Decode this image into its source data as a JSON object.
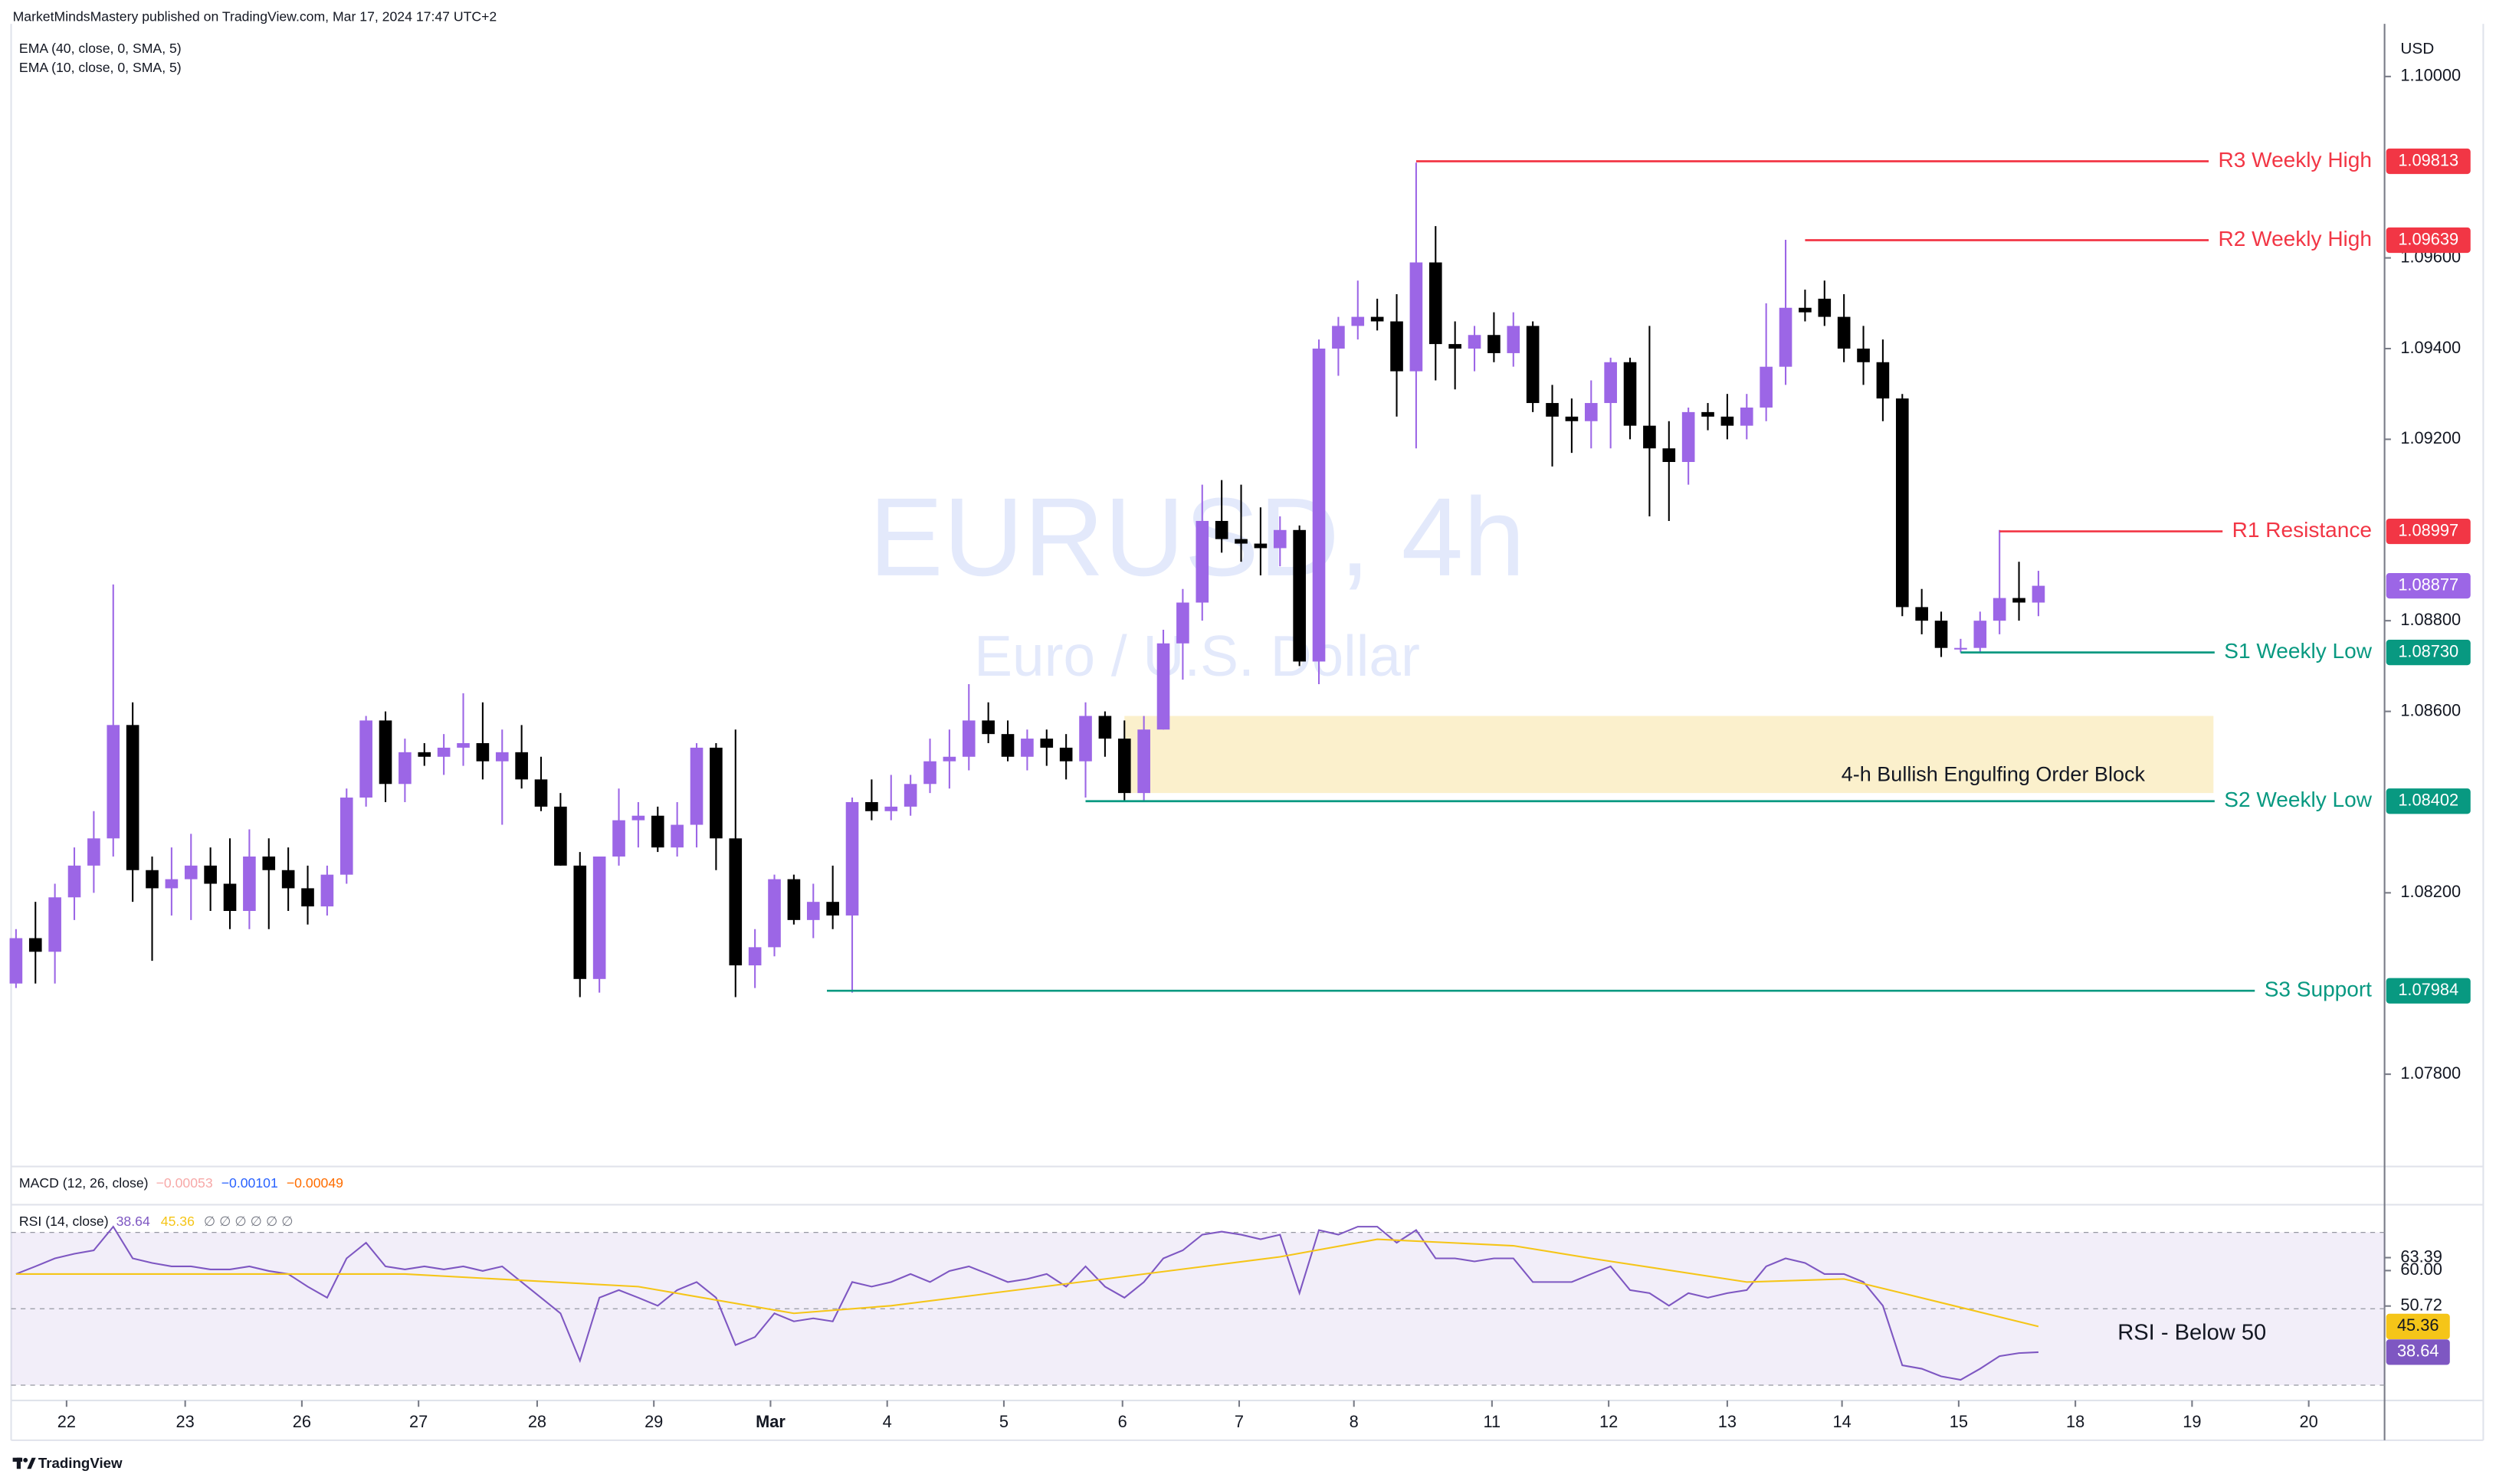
{
  "header": {
    "published": "MarketMindsMastery published on TradingView.com, Mar 17, 2024 17:47 UTC+2"
  },
  "chart_data": [
    {
      "type": "candlestick",
      "title": "EURUSD, 4h",
      "subtitle": "Euro / U.S. Dollar",
      "currency": "USD",
      "indicators": [
        "EMA (40, close, 0, SMA, 5)",
        "EMA (10, close, 0, SMA, 5)"
      ],
      "open": [
        1.08,
        1.081,
        1.0807,
        1.0819,
        1.0826,
        1.0832,
        1.0857,
        1.0825,
        1.0821,
        1.0823,
        1.0826,
        1.0822,
        1.0816,
        1.0828,
        1.0825,
        1.0821,
        1.0817,
        1.0824,
        1.0841,
        1.0858,
        1.0844,
        1.0851,
        1.085,
        1.0852,
        1.0853,
        1.0849,
        1.0851,
        1.0845,
        1.0839,
        1.0826,
        1.0801,
        1.0828,
        1.0836,
        1.0837,
        1.083,
        1.0835,
        1.0852,
        1.0832,
        1.0804,
        1.0808,
        1.0823,
        1.0814,
        1.0818,
        1.0815,
        1.084,
        1.0838,
        1.0839,
        1.0844,
        1.0849,
        1.085,
        1.0858,
        1.0855,
        1.085,
        1.0854,
        1.0852,
        1.0849,
        1.0859,
        1.0854,
        1.0842,
        1.0856,
        1.0875,
        1.0884,
        1.0902,
        1.0898,
        1.0897,
        1.0896,
        1.09,
        1.0871,
        1.094,
        1.0945,
        1.0947,
        1.0946,
        1.0935,
        1.0959,
        1.0941,
        1.094,
        1.0943,
        1.0939,
        1.0945,
        1.0928,
        1.0925,
        1.0924,
        1.0928,
        1.0937,
        1.0923,
        1.0918,
        1.0915,
        1.0926,
        1.0925,
        1.0923,
        1.0927,
        1.0936,
        1.0949,
        1.0951,
        1.0947,
        1.094,
        1.0937,
        1.0929,
        1.0883,
        1.088,
        1.0874,
        1.0874,
        1.088,
        1.0885,
        1.0884
      ],
      "high": [
        1.0812,
        1.0818,
        1.0822,
        1.083,
        1.0838,
        1.0888,
        1.0862,
        1.0828,
        1.083,
        1.0833,
        1.083,
        1.0832,
        1.0834,
        1.0832,
        1.083,
        1.0826,
        1.0826,
        1.0843,
        1.0859,
        1.086,
        1.0854,
        1.0853,
        1.0855,
        1.0864,
        1.0862,
        1.0856,
        1.0857,
        1.085,
        1.0842,
        1.0829,
        1.0828,
        1.0843,
        1.084,
        1.0839,
        1.084,
        1.0853,
        1.0853,
        1.0856,
        1.0812,
        1.0824,
        1.0824,
        1.0822,
        1.0826,
        1.0841,
        1.0845,
        1.0846,
        1.0846,
        1.0854,
        1.0856,
        1.0866,
        1.0862,
        1.0858,
        1.0856,
        1.0856,
        1.0855,
        1.0862,
        1.086,
        1.0858,
        1.0859,
        1.0878,
        1.0887,
        1.091,
        1.0911,
        1.091,
        1.0905,
        1.0903,
        1.0901,
        1.0942,
        1.0947,
        1.0955,
        1.0951,
        1.0952,
        1.0981,
        1.0967,
        1.0946,
        1.0945,
        1.0948,
        1.0948,
        1.0946,
        1.0932,
        1.0929,
        1.0933,
        1.0938,
        1.0938,
        1.0945,
        1.0924,
        1.0927,
        1.0928,
        1.093,
        1.093,
        1.095,
        1.0964,
        1.0953,
        1.0955,
        1.0952,
        1.0945,
        1.0942,
        1.093,
        1.0887,
        1.0882,
        1.0876,
        1.0882,
        1.09,
        1.0893,
        1.0891
      ],
      "low": [
        1.0799,
        1.08,
        1.08,
        1.0814,
        1.082,
        1.0828,
        1.0818,
        1.0805,
        1.0815,
        1.0814,
        1.0816,
        1.0812,
        1.0812,
        1.0812,
        1.0816,
        1.0813,
        1.0815,
        1.0822,
        1.0839,
        1.084,
        1.084,
        1.0848,
        1.0846,
        1.0848,
        1.0845,
        1.0835,
        1.0843,
        1.0838,
        1.0826,
        1.0797,
        1.0798,
        1.0826,
        1.083,
        1.0829,
        1.0828,
        1.083,
        1.0825,
        1.0797,
        1.0799,
        1.0806,
        1.0813,
        1.081,
        1.0812,
        1.0798,
        1.0836,
        1.0836,
        1.0837,
        1.0842,
        1.0843,
        1.0847,
        1.0853,
        1.0849,
        1.0847,
        1.0848,
        1.0845,
        1.0841,
        1.085,
        1.084,
        1.084,
        1.0856,
        1.0867,
        1.088,
        1.0895,
        1.0893,
        1.089,
        1.0892,
        1.087,
        1.0866,
        1.0934,
        1.0942,
        1.0944,
        1.0925,
        1.0918,
        1.0933,
        1.0931,
        1.0935,
        1.0937,
        1.0936,
        1.0926,
        1.0914,
        1.0917,
        1.0918,
        1.0918,
        1.092,
        1.0903,
        1.0902,
        1.091,
        1.0922,
        1.092,
        1.092,
        1.0924,
        1.0932,
        1.0946,
        1.0945,
        1.0937,
        1.0932,
        1.0924,
        1.0881,
        1.0877,
        1.0872,
        1.0873,
        1.0873,
        1.0877,
        1.088,
        1.0881
      ],
      "close": [
        1.081,
        1.0807,
        1.0819,
        1.0826,
        1.0832,
        1.0857,
        1.0825,
        1.0821,
        1.0823,
        1.0826,
        1.0822,
        1.0816,
        1.0828,
        1.0825,
        1.0821,
        1.0817,
        1.0824,
        1.0841,
        1.0858,
        1.0844,
        1.0851,
        1.085,
        1.0852,
        1.0853,
        1.0849,
        1.0851,
        1.0845,
        1.0839,
        1.0826,
        1.0801,
        1.0828,
        1.0836,
        1.0837,
        1.083,
        1.0835,
        1.0852,
        1.0832,
        1.0804,
        1.0808,
        1.0823,
        1.0814,
        1.0818,
        1.0815,
        1.084,
        1.0838,
        1.0839,
        1.0844,
        1.0849,
        1.085,
        1.0858,
        1.0855,
        1.085,
        1.0854,
        1.0852,
        1.0849,
        1.0859,
        1.0854,
        1.0842,
        1.0856,
        1.0875,
        1.0884,
        1.0902,
        1.0898,
        1.0897,
        1.0896,
        1.09,
        1.0871,
        1.094,
        1.0945,
        1.0947,
        1.0946,
        1.0935,
        1.0959,
        1.0941,
        1.094,
        1.0943,
        1.0939,
        1.0945,
        1.0928,
        1.0925,
        1.0924,
        1.0928,
        1.0937,
        1.0923,
        1.0918,
        1.0915,
        1.0926,
        1.0925,
        1.0923,
        1.0927,
        1.0936,
        1.0949,
        1.0948,
        1.0947,
        1.094,
        1.0937,
        1.0929,
        1.0883,
        1.088,
        1.0874,
        1.0874,
        1.088,
        1.0885,
        1.0884,
        1.08877
      ],
      "colors": {
        "up": "#9c66e6",
        "down": "#000000"
      },
      "xlim": [
        -0.25,
        121.8
      ],
      "xticks": [
        {
          "value": 2.6,
          "label": "22"
        },
        {
          "value": 8.7,
          "label": "23"
        },
        {
          "value": 14.7,
          "label": "26"
        },
        {
          "value": 20.7,
          "label": "27"
        },
        {
          "value": 26.8,
          "label": "28"
        },
        {
          "value": 32.8,
          "label": "29"
        },
        {
          "value": 38.8,
          "label": "Mar"
        },
        {
          "value": 44.8,
          "label": "4"
        },
        {
          "value": 50.8,
          "label": "5"
        },
        {
          "value": 56.9,
          "label": "6"
        },
        {
          "value": 62.9,
          "label": "7"
        },
        {
          "value": 68.8,
          "label": "8"
        },
        {
          "value": 75.9,
          "label": "11"
        },
        {
          "value": 81.9,
          "label": "12"
        },
        {
          "value": 88.0,
          "label": "13"
        },
        {
          "value": 93.9,
          "label": "14"
        },
        {
          "value": 99.9,
          "label": "15"
        },
        {
          "value": 105.9,
          "label": "18"
        },
        {
          "value": 111.9,
          "label": "19"
        },
        {
          "value": 117.9,
          "label": "20"
        }
      ],
      "ylim": [
        1.076,
        1.10116
      ],
      "yticks": [
        {
          "value": 1.1,
          "label": "1.10000"
        },
        {
          "value": 1.096,
          "label": "1.09600"
        },
        {
          "value": 1.094,
          "label": "1.09400"
        },
        {
          "value": 1.092,
          "label": "1.09200"
        },
        {
          "value": 1.088,
          "label": "1.08800"
        },
        {
          "value": 1.086,
          "label": "1.08600"
        },
        {
          "value": 1.082,
          "label": "1.08200"
        },
        {
          "value": 1.078,
          "label": "1.07800"
        }
      ],
      "levels": [
        {
          "label": "R3 Weekly High",
          "value": 1.09813,
          "x_start": 72,
          "color": "#f23645"
        },
        {
          "label": "R2 Weekly High",
          "value": 1.09639,
          "x_start": 92,
          "color": "#f23645"
        },
        {
          "label": "R1 Resistance",
          "value": 1.08997,
          "x_start": 102,
          "color": "#f23645"
        },
        {
          "label": "S1 Weekly Low",
          "value": 1.0873,
          "value_label": "1.08730",
          "x_start": 100,
          "color": "#089981"
        },
        {
          "label": "S2 Weekly Low",
          "value": 1.08402,
          "x_start": 55,
          "color": "#089981"
        },
        {
          "label": "S3 Support",
          "value": 1.07984,
          "x_start": 41.7,
          "color": "#089981"
        }
      ],
      "order_block": {
        "label": "4-h Bullish Engulfing Order Block",
        "low": 1.0842,
        "high": 1.0859,
        "x_start": 57,
        "x_end": 113,
        "color": "#fbf0cc"
      }
    },
    {
      "type": "line",
      "title": "RSI (14, close)",
      "ylim": [
        26,
        76
      ],
      "yticks": [
        63.39,
        {
          "value": 60,
          "label": "60.00"
        },
        50.72
      ],
      "band": [
        30,
        70
      ],
      "midline": 50,
      "band_color": "#7e57c2",
      "legend_extra": "∅ ∅ ∅ ∅ ∅ ∅",
      "annotation": "RSI - Below 50",
      "series": [
        {
          "color": "#7e57c2",
          "values": [
            59.1,
            61.1,
            63.2,
            64.4,
            65.3,
            71.5,
            63.2,
            62.0,
            61.1,
            61.1,
            60.3,
            60.3,
            61.1,
            59.9,
            59.1,
            55.8,
            52.9,
            63.2,
            67.3,
            61.1,
            60.3,
            61.1,
            60.3,
            61.1,
            59.9,
            61.1,
            57.0,
            52.9,
            48.8,
            36.4,
            52.9,
            54.9,
            52.9,
            50.8,
            54.9,
            57.0,
            52.9,
            40.5,
            42.6,
            48.8,
            46.7,
            47.5,
            46.7,
            57.0,
            55.8,
            57.0,
            59.1,
            57.0,
            59.9,
            61.1,
            59.1,
            57.0,
            57.8,
            59.1,
            55.8,
            61.1,
            55.8,
            52.9,
            57.0,
            63.2,
            65.3,
            69.4,
            70.2,
            69.4,
            68.2,
            69.4,
            54.1,
            70.6,
            69.4,
            71.5,
            71.5,
            67.3,
            70.6,
            63.2,
            63.2,
            62.4,
            63.2,
            63.2,
            57.0,
            57.0,
            57.0,
            59.1,
            61.1,
            54.9,
            54.1,
            50.8,
            54.1,
            52.9,
            54.1,
            54.9,
            61.1,
            63.2,
            62.0,
            59.1,
            59.1,
            57.0,
            50.8,
            35.2,
            34.3,
            32.3,
            31.4,
            34.3,
            37.6,
            38.4,
            38.64
          ]
        },
        {
          "color": "#f5c518",
          "x": [
            0,
            20,
            32,
            40,
            45,
            56,
            65,
            70,
            77,
            81,
            89,
            94,
            97,
            104
          ],
          "values": [
            59.1,
            59.1,
            55.8,
            48.8,
            50.8,
            57.8,
            63.6,
            68.2,
            66.5,
            63.2,
            57.0,
            57.8,
            54.1,
            45.36
          ]
        }
      ]
    }
  ],
  "macd_legend": {
    "title": "MACD (12, 26, close)",
    "values": [
      -0.00053,
      -0.00101,
      -0.00049
    ],
    "value_labels": [
      "−0.00053",
      "−0.00101",
      "−0.00049"
    ],
    "colors": [
      "#f7a9a8",
      "#2962ff",
      "#ff6d00"
    ]
  },
  "footer": {
    "brand": "TradingView"
  }
}
